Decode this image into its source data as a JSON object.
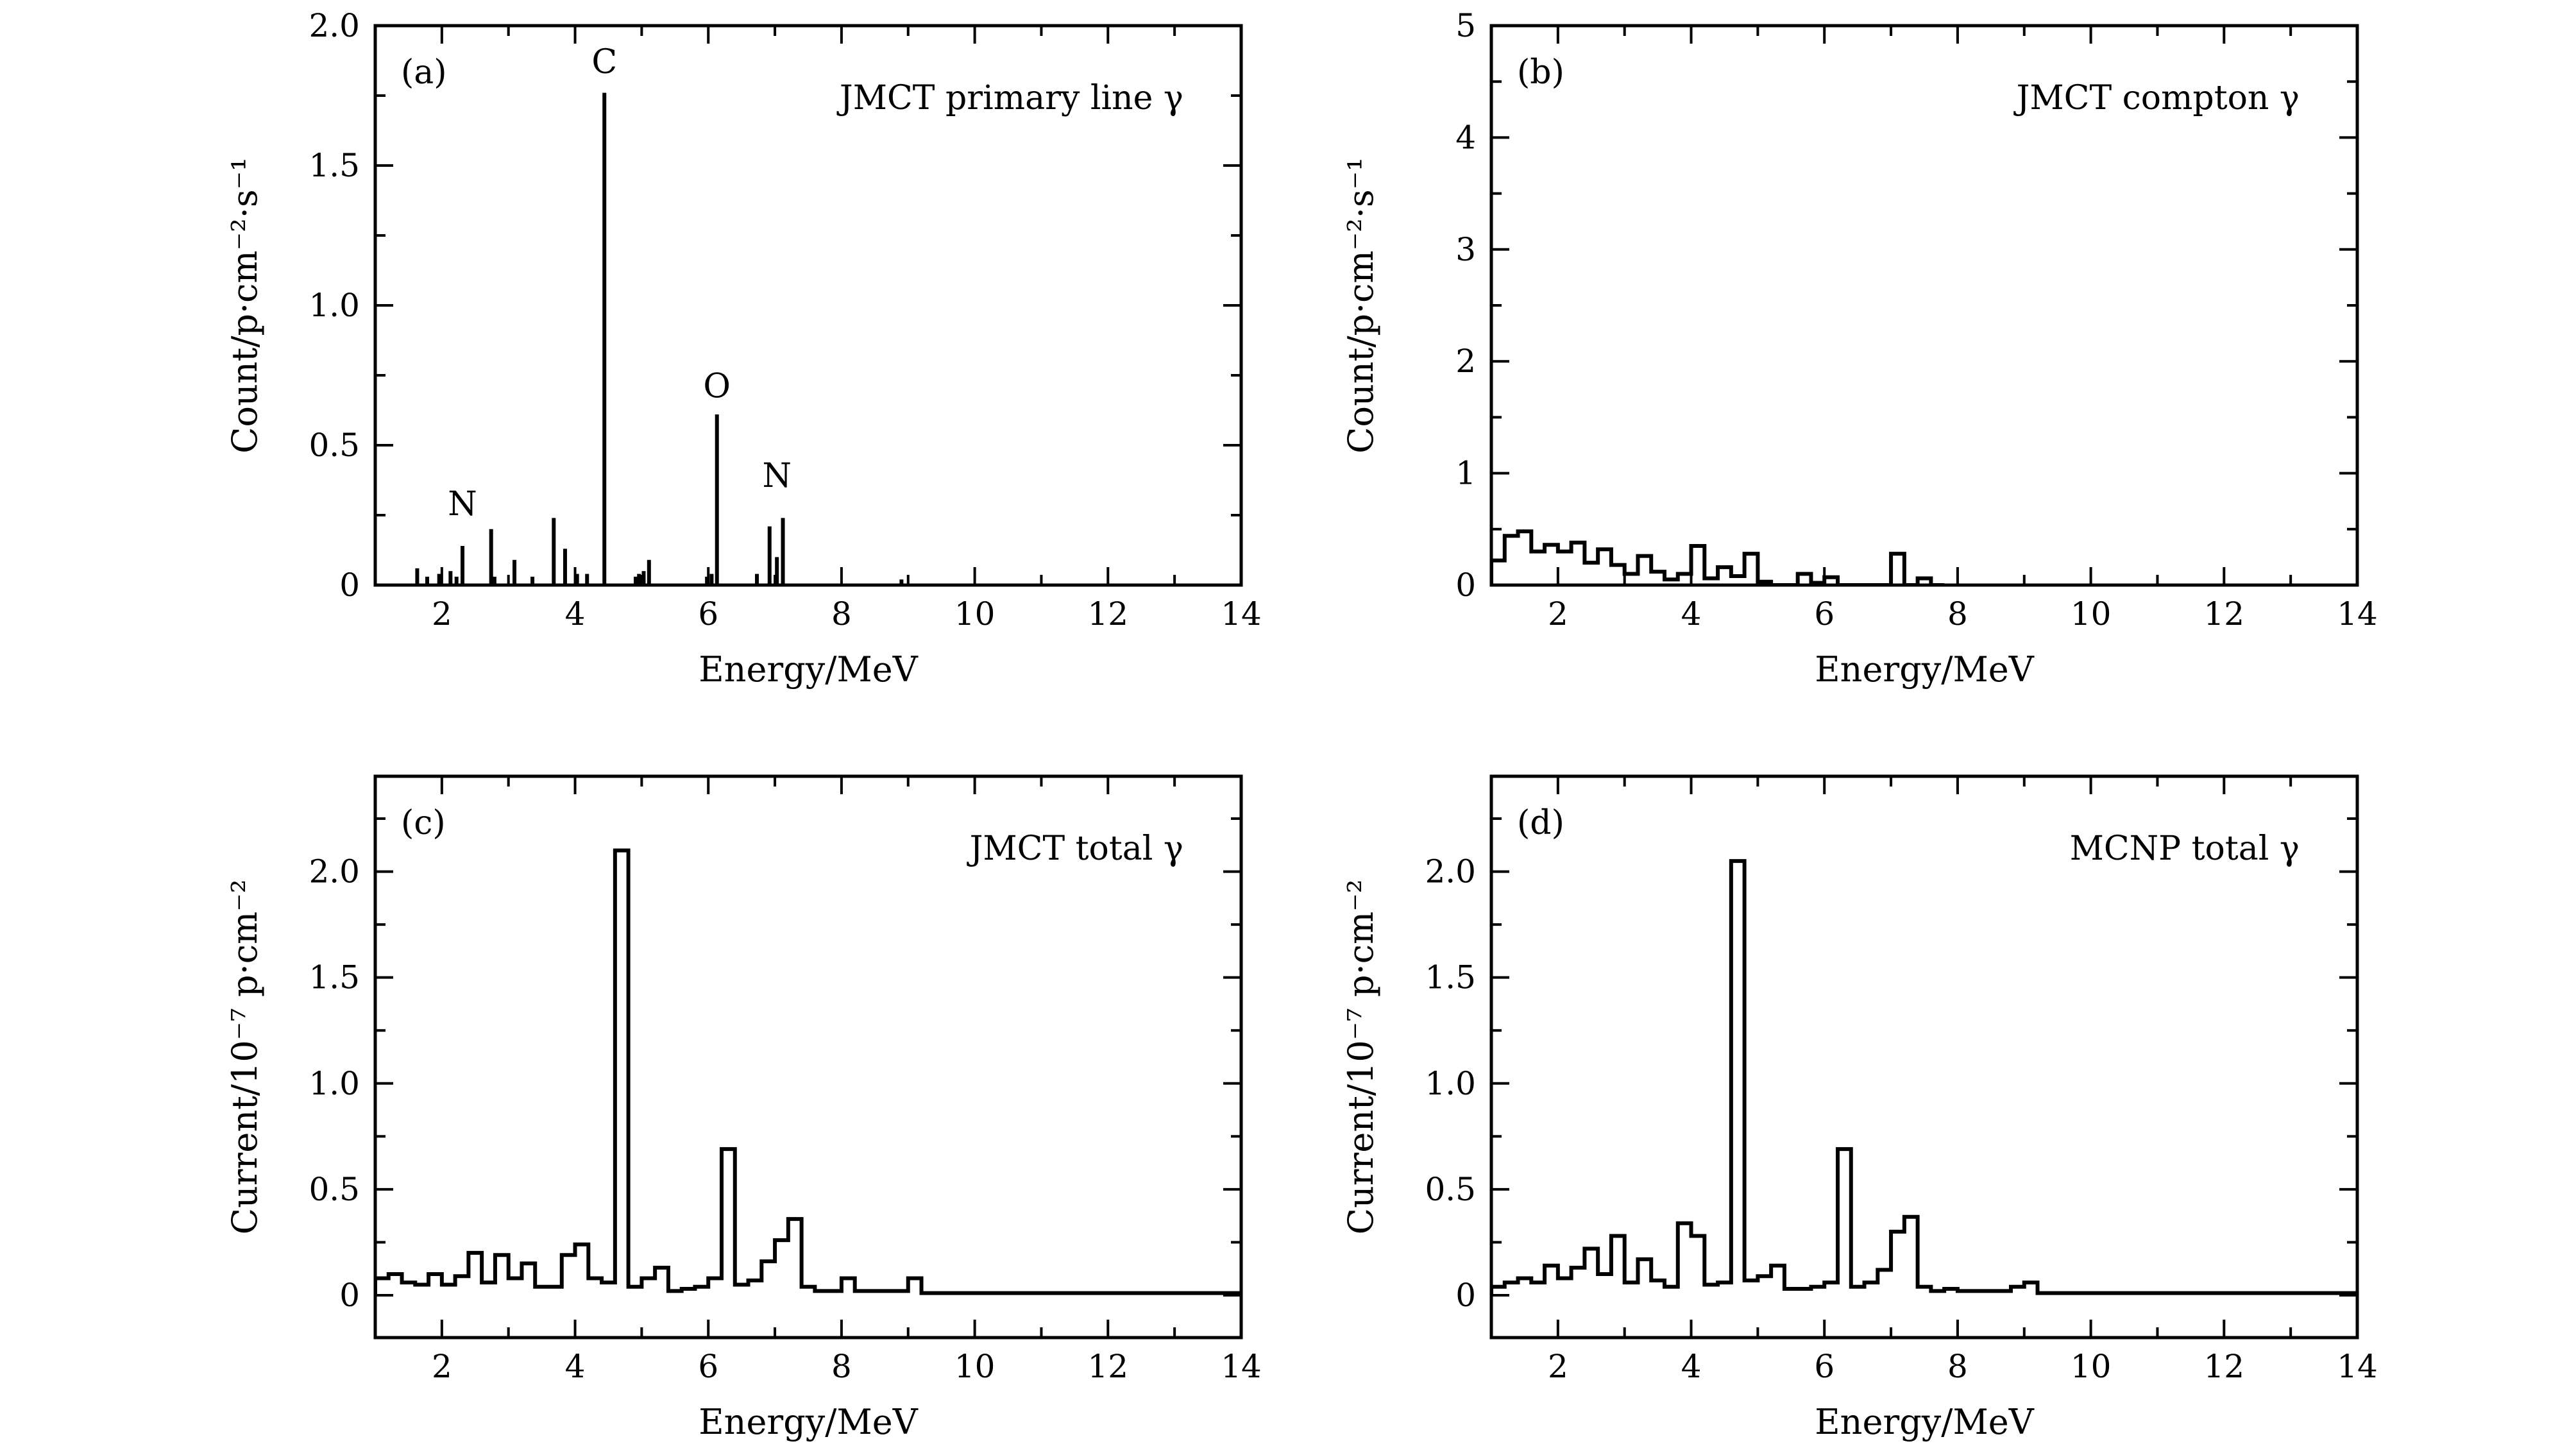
{
  "chart_data": [
    {
      "panel": "(a)",
      "type": "bar",
      "style": "stem",
      "title": "JMCT primary line γ",
      "xlabel": "Energy/MeV",
      "ylabel": "Count/p·cm⁻²·s⁻¹",
      "xlim": [
        1,
        14
      ],
      "ylim": [
        0,
        2.0
      ],
      "xticks": [
        "2",
        "4",
        "6",
        "8",
        "10",
        "12",
        "14"
      ],
      "yticks": [
        "0",
        "0.5",
        "1.0",
        "1.5",
        "2.0"
      ],
      "peak_labels": [
        {
          "label": "N",
          "x": 2.31,
          "y": 0.2
        },
        {
          "label": "C",
          "x": 4.44,
          "y": 1.78
        },
        {
          "label": "O",
          "x": 6.13,
          "y": 0.62
        },
        {
          "label": "N",
          "x": 7.03,
          "y": 0.3
        }
      ],
      "x": [
        1.63,
        1.78,
        1.96,
        2.13,
        2.22,
        2.31,
        2.74,
        2.79,
        3.09,
        3.36,
        3.68,
        3.85,
        4.03,
        4.18,
        4.44,
        4.91,
        4.96,
        5.03,
        5.11,
        5.98,
        6.05,
        6.13,
        6.73,
        6.92,
        7.03,
        7.12,
        8.9
      ],
      "y": [
        0.06,
        0.03,
        0.04,
        0.05,
        0.03,
        0.14,
        0.2,
        0.03,
        0.09,
        0.03,
        0.24,
        0.13,
        0.04,
        0.04,
        1.76,
        0.03,
        0.04,
        0.05,
        0.09,
        0.03,
        0.04,
        0.61,
        0.04,
        0.21,
        0.1,
        0.24,
        0.02
      ]
    },
    {
      "panel": "(b)",
      "type": "line",
      "style": "step-histogram",
      "title": "JMCT compton γ",
      "xlabel": "Energy/MeV",
      "ylabel": "Count/p·cm⁻²·s⁻¹",
      "xlim": [
        1,
        14
      ],
      "ylim": [
        0,
        5
      ],
      "xticks": [
        "2",
        "4",
        "6",
        "8",
        "10",
        "12",
        "14"
      ],
      "yticks": [
        "0",
        "1",
        "2",
        "3",
        "4",
        "5"
      ],
      "bin_edges": [
        1.0,
        1.25,
        1.5,
        1.75,
        2.0,
        2.25,
        2.5,
        2.75,
        3.0,
        3.25,
        3.5,
        3.75,
        4.0,
        4.25,
        4.5,
        4.75,
        5.0,
        5.25,
        5.5,
        5.75,
        6.0,
        6.25,
        6.5,
        6.75,
        7.0,
        7.25,
        7.5,
        7.75,
        8.0
      ],
      "values": [
        0.0,
        0.44,
        0.48,
        0.34,
        0.38,
        0.33,
        0.24,
        0.32,
        0.16,
        0.26,
        0.14,
        0.08,
        0.12,
        0.03,
        0.05,
        0.02,
        0.0,
        0.0,
        0.0,
        0.0,
        0.0,
        0.0,
        0.0,
        0.0,
        0.0,
        0.0,
        0.0,
        0.0
      ],
      "series": [
        {
          "name": "JMCT compton γ",
          "bin_edges": [
            1.0,
            1.2,
            1.4,
            1.6,
            1.8,
            2.0,
            2.2,
            2.4,
            2.6,
            2.8,
            3.0,
            3.2,
            3.4,
            3.6,
            3.8,
            4.0,
            4.2,
            4.4,
            4.6,
            4.8,
            5.0,
            5.2,
            5.4,
            5.6,
            5.8,
            6.0,
            6.2,
            6.4,
            6.6,
            6.8,
            7.0,
            7.2,
            7.4,
            7.6,
            7.8
          ],
          "values": [
            0.22,
            0.44,
            0.48,
            0.3,
            0.36,
            0.3,
            0.38,
            0.2,
            0.32,
            0.18,
            0.1,
            0.26,
            0.12,
            0.05,
            0.1,
            0.35,
            0.06,
            0.16,
            0.08,
            0.28,
            0.03,
            0.0,
            0.0,
            0.1,
            0.02,
            0.07,
            0.0,
            0.0,
            0.0,
            0.0,
            0.28,
            0.0,
            0.06,
            0.0
          ]
        }
      ]
    },
    {
      "panel": "(c)",
      "type": "line",
      "style": "step-histogram",
      "title": "JMCT total γ",
      "xlabel": "Energy/MeV",
      "ylabel": "Current/10⁻⁷ p·cm⁻²",
      "xlim": [
        1,
        14
      ],
      "ylim": [
        -0.2,
        2.45
      ],
      "xticks": [
        "2",
        "4",
        "6",
        "8",
        "10",
        "12",
        "14"
      ],
      "yticks": [
        "0",
        "0.5",
        "1.0",
        "1.5",
        "2.0"
      ],
      "series": [
        {
          "name": "JMCT total γ",
          "bin_edges": [
            1.0,
            1.2,
            1.4,
            1.6,
            1.8,
            2.0,
            2.2,
            2.4,
            2.6,
            2.8,
            3.0,
            3.2,
            3.4,
            3.6,
            3.8,
            4.0,
            4.2,
            4.4,
            4.6,
            4.8,
            5.0,
            5.2,
            5.4,
            5.6,
            5.8,
            6.0,
            6.2,
            6.4,
            6.6,
            6.8,
            7.0,
            7.2,
            7.4,
            7.6,
            7.8,
            8.0,
            8.2,
            8.4,
            8.6,
            8.8,
            9.0,
            9.2,
            14.0
          ],
          "values": [
            0.08,
            0.1,
            0.06,
            0.05,
            0.1,
            0.05,
            0.09,
            0.2,
            0.06,
            0.19,
            0.08,
            0.15,
            0.04,
            0.04,
            0.19,
            0.24,
            0.08,
            0.06,
            2.1,
            0.04,
            0.08,
            0.13,
            0.02,
            0.03,
            0.04,
            0.08,
            0.69,
            0.05,
            0.07,
            0.16,
            0.26,
            0.36,
            0.04,
            0.02,
            0.02,
            0.08,
            0.02,
            0.02,
            0.02,
            0.02,
            0.08,
            0.01
          ]
        }
      ]
    },
    {
      "panel": "(d)",
      "type": "line",
      "style": "step-histogram",
      "title": "MCNP total γ",
      "xlabel": "Energy/MeV",
      "ylabel": "Current/10⁻⁷ p·cm⁻²",
      "xlim": [
        1,
        14
      ],
      "ylim": [
        -0.2,
        2.45
      ],
      "xticks": [
        "2",
        "4",
        "6",
        "8",
        "10",
        "12",
        "14"
      ],
      "yticks": [
        "0",
        "0.5",
        "1.0",
        "1.5",
        "2.0"
      ],
      "series": [
        {
          "name": "MCNP total γ",
          "bin_edges": [
            1.0,
            1.2,
            1.4,
            1.6,
            1.8,
            2.0,
            2.2,
            2.4,
            2.6,
            2.8,
            3.0,
            3.2,
            3.4,
            3.6,
            3.8,
            4.0,
            4.2,
            4.4,
            4.6,
            4.8,
            5.0,
            5.2,
            5.4,
            5.6,
            5.8,
            6.0,
            6.2,
            6.4,
            6.6,
            6.8,
            7.0,
            7.2,
            7.4,
            7.6,
            7.8,
            8.0,
            8.2,
            8.4,
            8.6,
            8.8,
            9.0,
            9.2,
            14.0
          ],
          "values": [
            0.04,
            0.06,
            0.08,
            0.06,
            0.14,
            0.08,
            0.13,
            0.22,
            0.1,
            0.28,
            0.06,
            0.17,
            0.07,
            0.04,
            0.34,
            0.28,
            0.05,
            0.06,
            2.05,
            0.07,
            0.09,
            0.14,
            0.03,
            0.03,
            0.04,
            0.06,
            0.69,
            0.04,
            0.06,
            0.12,
            0.3,
            0.37,
            0.04,
            0.02,
            0.03,
            0.02,
            0.02,
            0.02,
            0.02,
            0.04,
            0.06,
            0.01
          ]
        }
      ]
    }
  ]
}
